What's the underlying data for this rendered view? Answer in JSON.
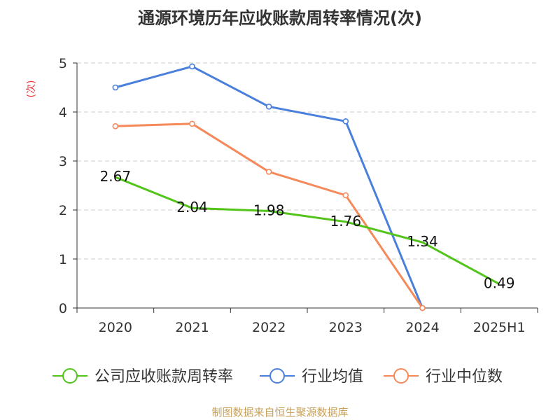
{
  "chart_data": {
    "type": "line",
    "title": "通源环境历年应收账款周转率情况(次)",
    "ylabel": "(次)",
    "categories": [
      "2020",
      "2021",
      "2022",
      "2023",
      "2024",
      "2025H1"
    ],
    "yticks": [
      "0",
      "1",
      "2",
      "3",
      "4",
      "5"
    ],
    "ylim": [
      0,
      5
    ],
    "grid": true,
    "legend_position": "bottom",
    "series": [
      {
        "name": "公司应收账款周转率",
        "color": "#52c41a",
        "values": [
          2.67,
          2.04,
          1.98,
          1.76,
          1.34,
          0.49
        ],
        "labels": [
          "2.67",
          "2.04",
          "1.98",
          "1.76",
          "1.34",
          "0.49"
        ],
        "marker": "none"
      },
      {
        "name": "行业均值",
        "color": "#4a7fdc",
        "values": [
          4.5,
          4.93,
          4.11,
          3.81,
          0.0,
          null
        ],
        "marker": "circle"
      },
      {
        "name": "行业中位数",
        "color": "#f5895a",
        "values": [
          3.71,
          3.76,
          2.78,
          2.3,
          0.0,
          null
        ],
        "marker": "circle"
      }
    ]
  },
  "footer": "制图数据来自恒生聚源数据库"
}
